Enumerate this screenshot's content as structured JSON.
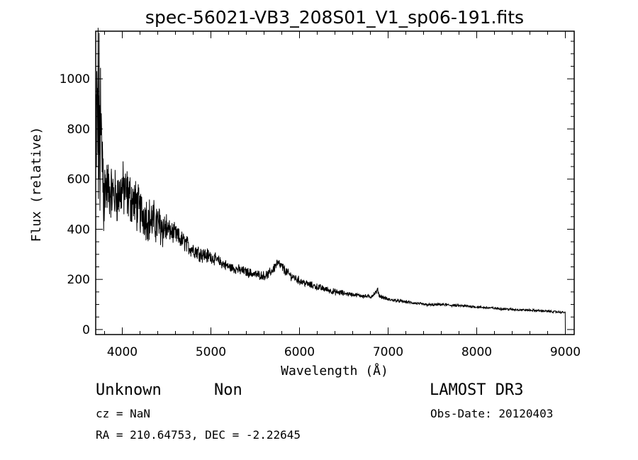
{
  "chart_data": {
    "type": "line",
    "title": "spec-56021-VB3_208S01_V1_sp06-191.fits",
    "xlabel": "Wavelength (Å)",
    "ylabel": "Flux (relative)",
    "xlim": [
      3700,
      9100
    ],
    "ylim": [
      -20,
      1190
    ],
    "x_ticks": [
      4000,
      5000,
      6000,
      7000,
      8000,
      9000
    ],
    "y_ticks": [
      0,
      200,
      400,
      600,
      800,
      1000
    ],
    "grid": false,
    "series": [
      {
        "name": "flux",
        "x": [
          3700,
          3720,
          3740,
          3760,
          3780,
          3800,
          3850,
          3900,
          3950,
          4000,
          4050,
          4100,
          4150,
          4200,
          4250,
          4300,
          4350,
          4400,
          4450,
          4500,
          4550,
          4600,
          4650,
          4700,
          4750,
          4800,
          4850,
          4900,
          4950,
          5000,
          5100,
          5200,
          5300,
          5400,
          5500,
          5600,
          5650,
          5700,
          5750,
          5800,
          5850,
          5900,
          6000,
          6100,
          6200,
          6300,
          6400,
          6500,
          6600,
          6700,
          6800,
          6870,
          6880,
          6900,
          7000,
          7100,
          7200,
          7300,
          7400,
          7500,
          7600,
          7700,
          7800,
          7900,
          8000,
          8200,
          8400,
          8600,
          8800,
          9000
        ],
        "values": [
          700,
          850,
          780,
          720,
          640,
          580,
          560,
          540,
          530,
          560,
          540,
          520,
          500,
          470,
          460,
          440,
          430,
          420,
          410,
          400,
          390,
          380,
          360,
          350,
          330,
          320,
          310,
          300,
          295,
          290,
          270,
          250,
          240,
          230,
          220,
          215,
          220,
          240,
          265,
          250,
          230,
          215,
          195,
          180,
          170,
          160,
          150,
          145,
          140,
          135,
          130,
          150,
          160,
          135,
          120,
          115,
          110,
          105,
          100,
          98,
          100,
          97,
          95,
          93,
          90,
          85,
          80,
          77,
          73,
          68
        ]
      }
    ]
  },
  "footer": {
    "object_type": "Unknown",
    "object_class": "Non",
    "survey": "LAMOST DR3",
    "cz": "cz = NaN",
    "obs_date": "Obs-Date: 20120403",
    "coords": "RA = 210.64753, DEC =  -2.22645"
  }
}
